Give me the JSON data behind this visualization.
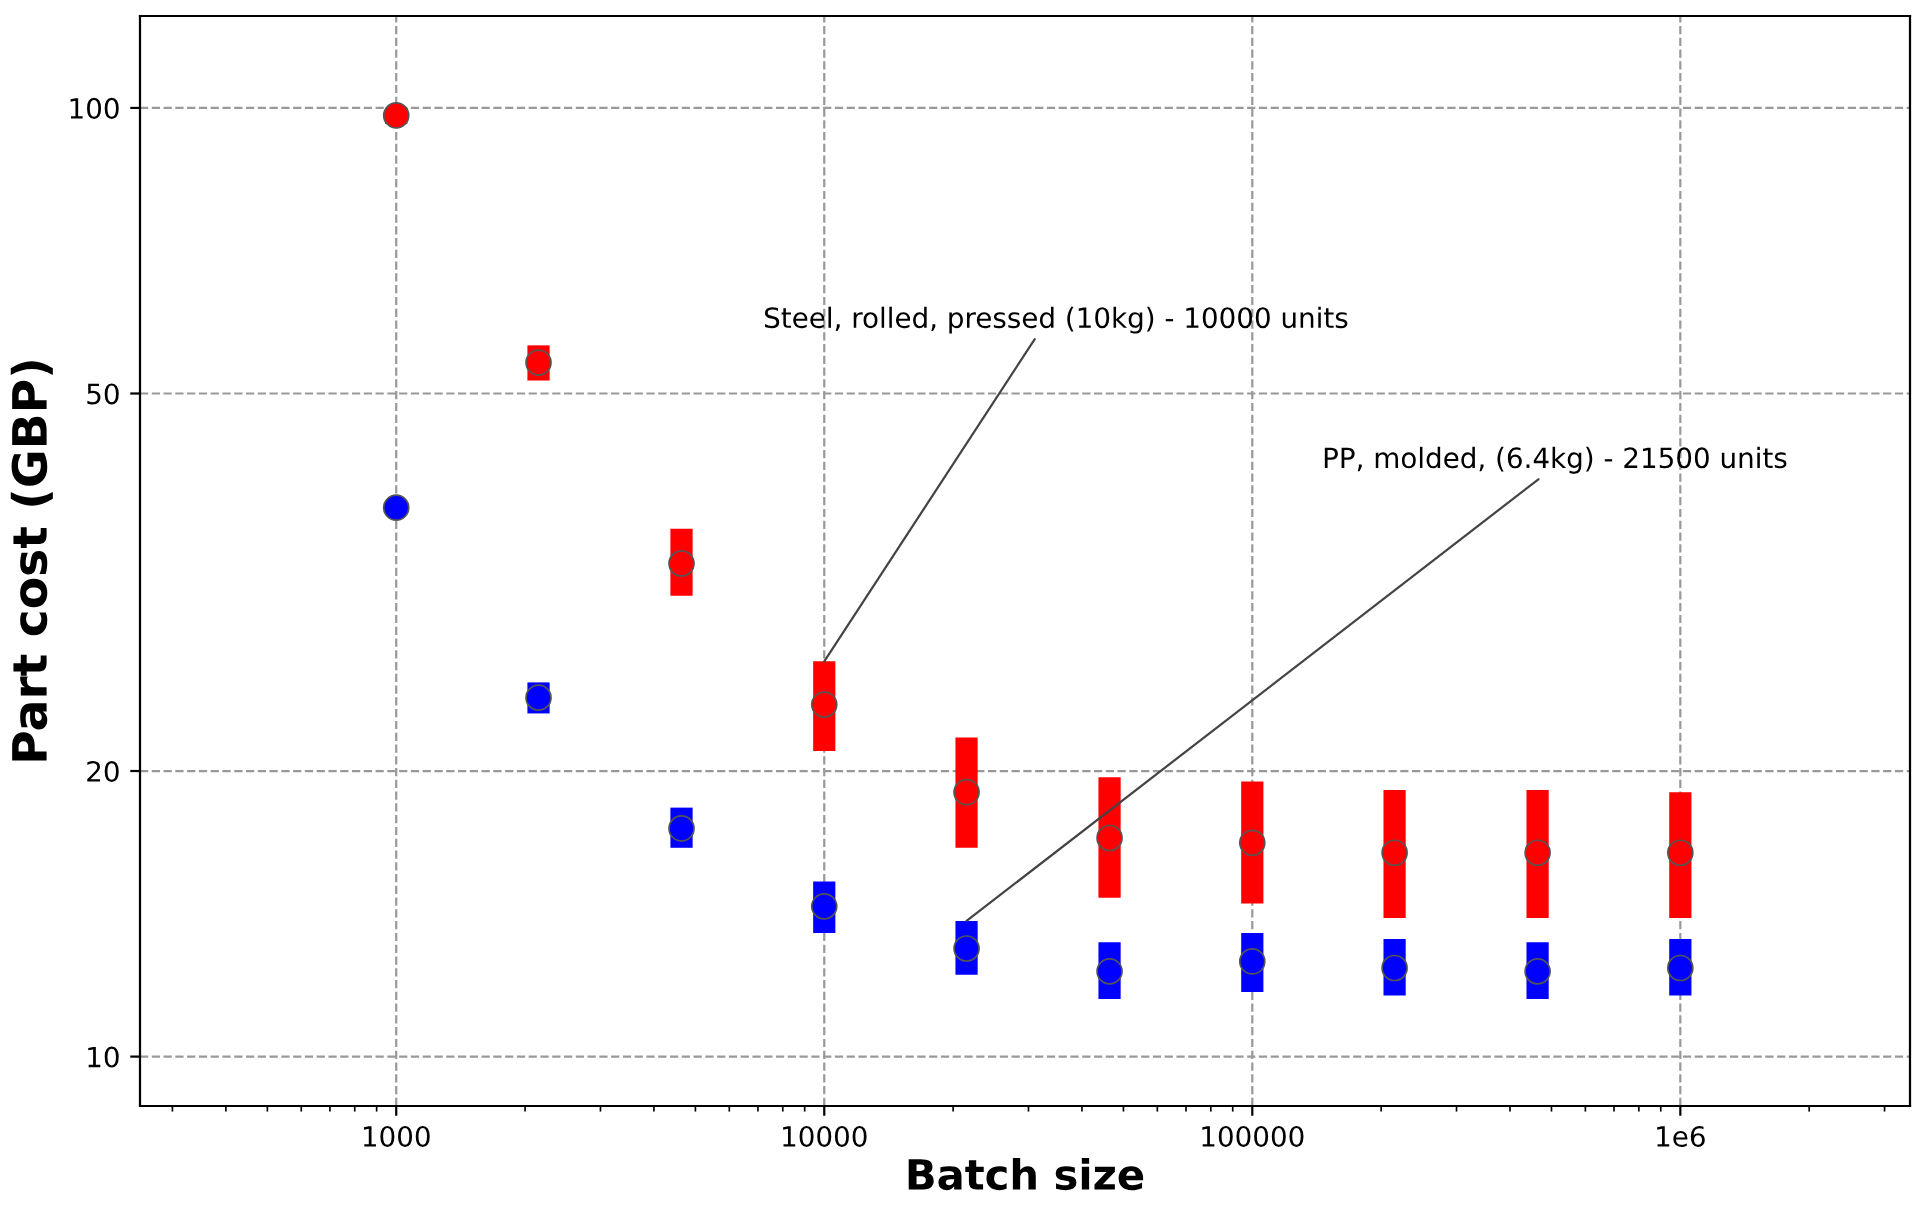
{
  "chart_data": {
    "type": "scatter",
    "xlabel": "Batch size",
    "ylabel": "Part cost (GBP)",
    "log": "xy",
    "grid": true,
    "x": [
      1000,
      2150,
      4640,
      10000,
      21500,
      46400,
      100000,
      215000,
      464000,
      1000000
    ],
    "series": [
      {
        "color": "#ff0000",
        "values": [
          98.2,
          53.9,
          33.1,
          23.5,
          19.0,
          17.0,
          16.8,
          16.4,
          16.4,
          16.4
        ],
        "errors": [
          [
            96.2,
            100
          ],
          [
            51.6,
            56.2
          ],
          [
            30.6,
            36.0
          ],
          [
            21.0,
            26.1
          ],
          [
            16.6,
            21.7
          ],
          [
            14.7,
            19.7
          ],
          [
            14.5,
            19.5
          ],
          [
            14.0,
            19.1
          ],
          [
            14.0,
            19.1
          ],
          [
            14.0,
            19.0
          ]
        ]
      },
      {
        "color": "#0000ff",
        "values": [
          37.9,
          23.9,
          17.4,
          14.4,
          13.0,
          12.3,
          12.6,
          12.4,
          12.3,
          12.4
        ],
        "errors": [
          [
            37.3,
            38.5
          ],
          [
            23.0,
            24.8
          ],
          [
            16.6,
            18.3
          ],
          [
            13.5,
            15.3
          ],
          [
            12.2,
            13.9
          ],
          [
            11.5,
            13.2
          ],
          [
            11.7,
            13.5
          ],
          [
            11.6,
            13.3
          ],
          [
            11.5,
            13.2
          ],
          [
            11.6,
            13.3
          ]
        ]
      }
    ],
    "annotations": [
      {
        "text": "Steel, rolled, pressed (10kg) - 10000 units",
        "x": 10000,
        "y": 26.1
      },
      {
        "text": "PP, molded, (6.4kg) - 21500 units",
        "x": 21500,
        "y": 13.9
      }
    ],
    "xlim": [
      252,
      3440000
    ],
    "ylim": [
      8.87,
      125
    ],
    "xticks": [
      1000,
      10000,
      100000,
      {
        "value": 1000000,
        "label": "1e6"
      }
    ],
    "yticks": [
      10,
      20,
      50,
      100
    ]
  }
}
